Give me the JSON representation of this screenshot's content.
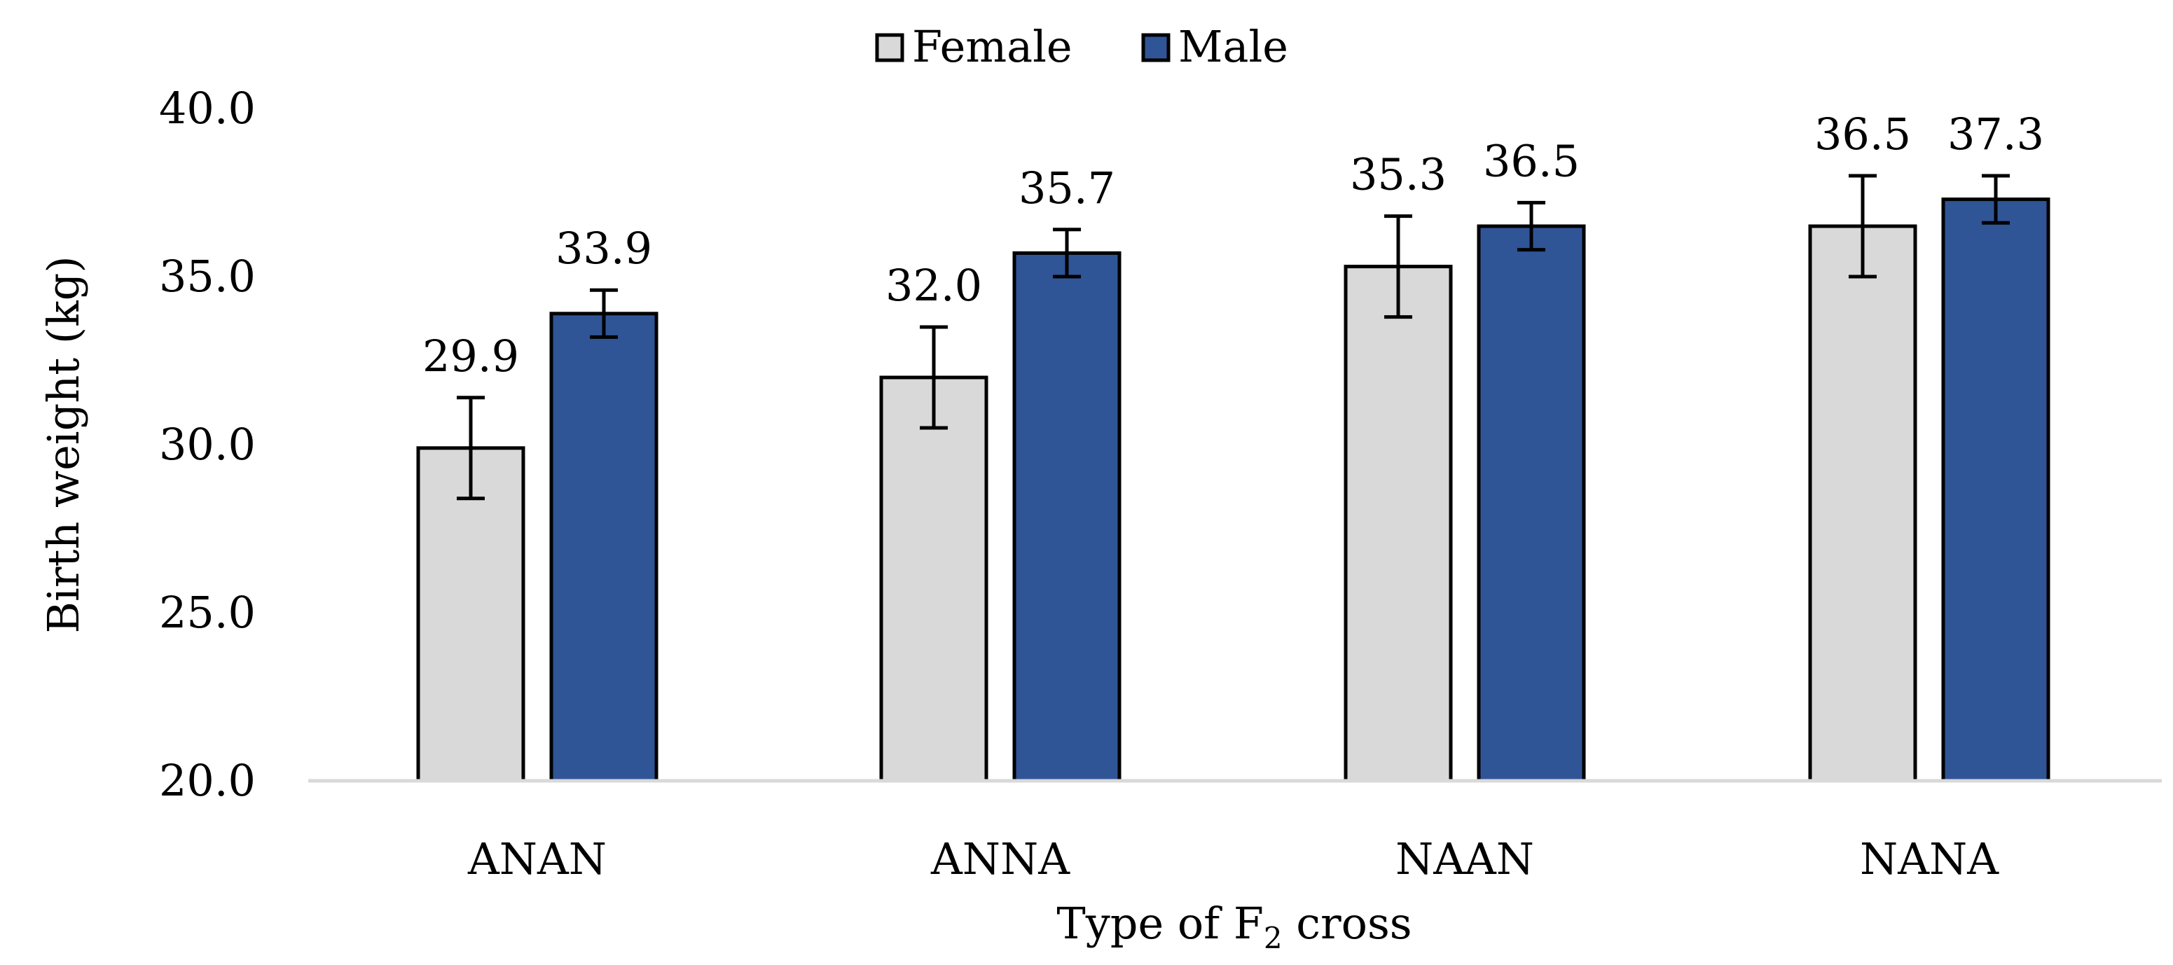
{
  "chart_data": {
    "type": "bar",
    "title": "",
    "xlabel": "Type of F",
    "xlabel_subscript": "2",
    "xlabel_suffix": " cross",
    "ylabel": "Birth weight (kg)",
    "ylim": [
      20.0,
      40.0
    ],
    "yticks": [
      "20.0",
      "25.0",
      "30.0",
      "35.0",
      "40.0"
    ],
    "grid": false,
    "legend_position": "top-center",
    "categories": [
      "ANAN",
      "ANNA",
      "NAAN",
      "NANA"
    ],
    "series": [
      {
        "name": "Female",
        "color": "#d9d9d9",
        "values": [
          29.9,
          32.0,
          35.3,
          36.5
        ],
        "labels": [
          "29.9",
          "32.0",
          "35.3",
          "36.5"
        ],
        "error_low": [
          28.4,
          30.5,
          33.8,
          35.0
        ],
        "error_high": [
          31.4,
          33.5,
          36.8,
          38.0
        ]
      },
      {
        "name": "Male",
        "color": "#2f5597",
        "values": [
          33.9,
          35.7,
          36.5,
          37.3
        ],
        "labels": [
          "33.9",
          "35.7",
          "36.5",
          "37.3"
        ],
        "error_low": [
          33.2,
          35.0,
          35.8,
          36.6
        ],
        "error_high": [
          34.6,
          36.4,
          37.2,
          38.0
        ]
      }
    ]
  }
}
